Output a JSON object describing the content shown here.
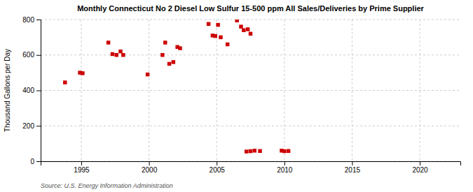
{
  "chart_data": {
    "type": "scatter",
    "title": "Monthly Connecticut No 2 Diesel Low Sulfur 15-500 ppm All Sales/Deliveries by Prime Supplier",
    "ylabel": "Thousand Gallons per Day",
    "source": "Source: U.S. Energy Information Administration",
    "color": "#cc0000",
    "marker": "square",
    "grid": true,
    "xlim": [
      1992,
      2023
    ],
    "ylim": [
      0,
      800
    ],
    "xticks": [
      1995,
      2000,
      2005,
      2010,
      2015,
      2020
    ],
    "yticks": [
      0,
      200,
      400,
      600,
      800
    ],
    "x": [
      1993.8,
      1994.9,
      1995.1,
      1997.0,
      1997.3,
      1997.6,
      1997.9,
      1998.1,
      1999.9,
      2001.0,
      2001.2,
      2001.5,
      2001.8,
      2002.1,
      2002.3,
      2004.4,
      2004.7,
      2004.9,
      2005.1,
      2005.3,
      2005.8,
      2006.5,
      2006.8,
      2007.0,
      2007.3,
      2007.5,
      2007.2,
      2007.5,
      2007.8,
      2008.2,
      2009.8,
      2010.0,
      2010.3
    ],
    "values": [
      445,
      500,
      497,
      670,
      605,
      600,
      620,
      600,
      490,
      600,
      670,
      550,
      560,
      645,
      638,
      775,
      710,
      707,
      770,
      700,
      660,
      795,
      760,
      740,
      745,
      720,
      55,
      57,
      60,
      58,
      60,
      57,
      58
    ]
  }
}
